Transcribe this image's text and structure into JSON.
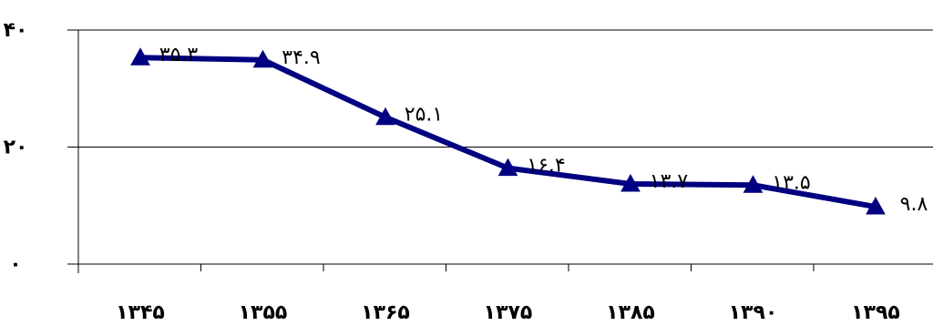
{
  "chart_data": {
    "type": "line",
    "categories": [
      "۱۳۴۵",
      "۱۳۵۵",
      "۱۳۶۵",
      "۱۳۷۵",
      "۱۳۸۵",
      "۱۳۹۰",
      "۱۳۹۵"
    ],
    "series": [
      {
        "values": [
          35.3,
          34.9,
          25.1,
          16.4,
          13.7,
          13.5,
          9.8
        ],
        "labels": [
          "۳۵.۳",
          "۳۴.۹",
          "۲۵.۱",
          "۱۶.۴",
          "۱۳.۷",
          "۱۳.۵",
          "۹.۸"
        ],
        "color": "#000080",
        "marker": "triangle"
      }
    ],
    "yticks": [
      0,
      20,
      40
    ],
    "ytick_labels": [
      "۰",
      "۲۰",
      "۴۰"
    ],
    "ylim": [
      0,
      40
    ],
    "gridlines": "horizontal",
    "legend": "none",
    "title": "",
    "xlabel": "",
    "ylabel": ""
  }
}
